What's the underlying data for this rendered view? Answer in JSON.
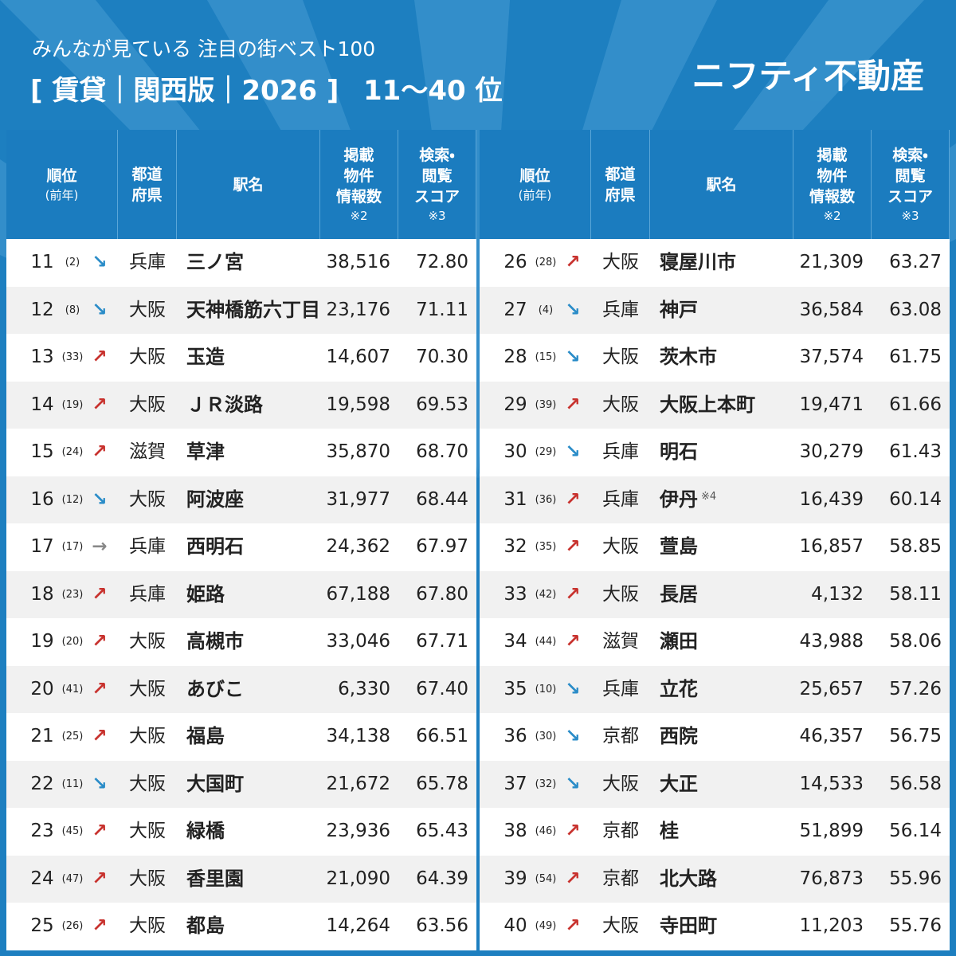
{
  "header": {
    "subtitle": "みんなが見ている 注目の街ベスト100",
    "title": "[ 賃貸｜関西版｜2026 ]",
    "range": "11〜40 位",
    "brand": "ニフティ不動産"
  },
  "columns": [
    [
      "順位",
      "(前年)"
    ],
    [
      "都道",
      "府県"
    ],
    [
      "駅名"
    ],
    [
      "掲載",
      "物件",
      "情報数",
      "※2"
    ],
    [
      "検索・",
      "閲覧",
      "スコア",
      "※3"
    ]
  ],
  "arrow_colors": {
    "↗": "#c8322e",
    "↘": "#2a8cc8",
    "→": "#888888"
  },
  "tables": [
    {
      "rows": [
        [
          "11",
          "(2)",
          "↘",
          "兵庫",
          "三ノ宮",
          "38,516",
          "72.80"
        ],
        [
          "12",
          "(8)",
          "↘",
          "大阪",
          "天神橋筋六丁目",
          "23,176",
          "71.11"
        ],
        [
          "13",
          "(33)",
          "↗",
          "大阪",
          "玉造",
          "14,607",
          "70.30"
        ],
        [
          "14",
          "(19)",
          "↗",
          "大阪",
          "ＪＲ淡路",
          "19,598",
          "69.53"
        ],
        [
          "15",
          "(24)",
          "↗",
          "滋賀",
          "草津",
          "35,870",
          "68.70"
        ],
        [
          "16",
          "(12)",
          "↘",
          "大阪",
          "阿波座",
          "31,977",
          "68.44"
        ],
        [
          "17",
          "(17)",
          "→",
          "兵庫",
          "西明石",
          "24,362",
          "67.97"
        ],
        [
          "18",
          "(23)",
          "↗",
          "兵庫",
          "姫路",
          "67,188",
          "67.80"
        ],
        [
          "19",
          "(20)",
          "↗",
          "大阪",
          "高槻市",
          "33,046",
          "67.71"
        ],
        [
          "20",
          "(41)",
          "↗",
          "大阪",
          "あびこ",
          "6,330",
          "67.40"
        ],
        [
          "21",
          "(25)",
          "↗",
          "大阪",
          "福島",
          "34,138",
          "66.51"
        ],
        [
          "22",
          "(11)",
          "↘",
          "大阪",
          "大国町",
          "21,672",
          "65.78"
        ],
        [
          "23",
          "(45)",
          "↗",
          "大阪",
          "緑橋",
          "23,936",
          "65.43"
        ],
        [
          "24",
          "(47)",
          "↗",
          "大阪",
          "香里園",
          "21,090",
          "64.39"
        ],
        [
          "25",
          "(26)",
          "↗",
          "大阪",
          "都島",
          "14,264",
          "63.56"
        ]
      ]
    },
    {
      "rows": [
        [
          "26",
          "(28)",
          "↗",
          "大阪",
          "寝屋川市",
          "21,309",
          "63.27"
        ],
        [
          "27",
          "(4)",
          "↘",
          "兵庫",
          "神戸",
          "36,584",
          "63.08"
        ],
        [
          "28",
          "(15)",
          "↘",
          "大阪",
          "茨木市",
          "37,574",
          "61.75"
        ],
        [
          "29",
          "(39)",
          "↗",
          "大阪",
          "大阪上本町",
          "19,471",
          "61.66"
        ],
        [
          "30",
          "(29)",
          "↘",
          "兵庫",
          "明石",
          "30,279",
          "61.43"
        ],
        [
          "31",
          "(36)",
          "↗",
          "兵庫",
          "伊丹",
          "16,439",
          "60.14",
          "※4"
        ],
        [
          "32",
          "(35)",
          "↗",
          "大阪",
          "萱島",
          "16,857",
          "58.85"
        ],
        [
          "33",
          "(42)",
          "↗",
          "大阪",
          "長居",
          "4,132",
          "58.11"
        ],
        [
          "34",
          "(44)",
          "↗",
          "滋賀",
          "瀬田",
          "43,988",
          "58.06"
        ],
        [
          "35",
          "(10)",
          "↘",
          "兵庫",
          "立花",
          "25,657",
          "57.26"
        ],
        [
          "36",
          "(30)",
          "↘",
          "京都",
          "西院",
          "46,357",
          "56.75"
        ],
        [
          "37",
          "(32)",
          "↘",
          "大阪",
          "大正",
          "14,533",
          "56.58"
        ],
        [
          "38",
          "(46)",
          "↗",
          "京都",
          "桂",
          "51,899",
          "56.14"
        ],
        [
          "39",
          "(54)",
          "↗",
          "京都",
          "北大路",
          "76,873",
          "55.96"
        ],
        [
          "40",
          "(49)",
          "↗",
          "大阪",
          "寺田町",
          "11,203",
          "55.76"
        ]
      ]
    }
  ]
}
